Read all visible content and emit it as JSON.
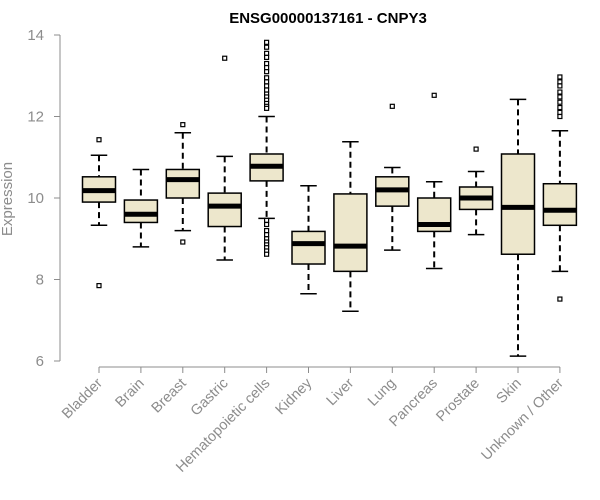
{
  "chart_data": {
    "type": "boxplot",
    "title": "ENSG00000137161 - CNPY3",
    "xlabel": "",
    "ylabel": "Expression",
    "ylim": [
      6,
      14
    ],
    "yticks": [
      6,
      8,
      10,
      12,
      14
    ],
    "box_fill": "#ede7cc",
    "line_color": "#000000",
    "axis_color": "#8c8c8c",
    "categories": [
      "Bladder",
      "Brain",
      "Breast",
      "Gastric",
      "Hematopoietic cells",
      "Kidney",
      "Liver",
      "Lung",
      "Pancreas",
      "Prostate",
      "Skin",
      "Unknown / Other"
    ],
    "boxes": [
      {
        "label": "Bladder",
        "whisker_low": 9.33,
        "q1": 9.9,
        "median": 10.18,
        "q3": 10.52,
        "whisker_high": 11.05,
        "outliers": [
          11.43,
          7.85
        ]
      },
      {
        "label": "Brain",
        "whisker_low": 8.8,
        "q1": 9.4,
        "median": 9.6,
        "q3": 9.95,
        "whisker_high": 10.7,
        "outliers": []
      },
      {
        "label": "Breast",
        "whisker_low": 9.2,
        "q1": 10.0,
        "median": 10.45,
        "q3": 10.7,
        "whisker_high": 11.6,
        "outliers": [
          11.8,
          8.92
        ]
      },
      {
        "label": "Gastric",
        "whisker_low": 8.48,
        "q1": 9.3,
        "median": 9.8,
        "q3": 10.12,
        "whisker_high": 11.02,
        "outliers": [
          13.43
        ]
      },
      {
        "label": "Hematopoietic cells",
        "whisker_low": 9.5,
        "q1": 10.42,
        "median": 10.78,
        "q3": 11.08,
        "whisker_high": 12.0,
        "outliers": [
          13.82,
          13.7,
          13.55,
          13.45,
          13.3,
          13.2,
          13.1,
          12.95,
          12.85,
          12.75,
          12.65,
          12.55,
          12.48,
          12.4,
          12.32,
          12.25,
          12.2,
          9.45,
          9.35,
          9.2,
          9.1,
          9.0,
          8.92,
          8.85,
          8.78,
          8.7,
          8.62
        ]
      },
      {
        "label": "Kidney",
        "whisker_low": 7.65,
        "q1": 8.38,
        "median": 8.88,
        "q3": 9.18,
        "whisker_high": 10.3,
        "outliers": []
      },
      {
        "label": "Liver",
        "whisker_low": 7.22,
        "q1": 8.2,
        "median": 8.82,
        "q3": 10.1,
        "whisker_high": 11.38,
        "outliers": []
      },
      {
        "label": "Lung",
        "whisker_low": 8.72,
        "q1": 9.8,
        "median": 10.2,
        "q3": 10.52,
        "whisker_high": 10.75,
        "outliers": [
          12.25
        ]
      },
      {
        "label": "Pancreas",
        "whisker_low": 8.27,
        "q1": 9.18,
        "median": 9.35,
        "q3": 10.0,
        "whisker_high": 10.4,
        "outliers": [
          12.52
        ]
      },
      {
        "label": "Prostate",
        "whisker_low": 9.1,
        "q1": 9.72,
        "median": 10.0,
        "q3": 10.27,
        "whisker_high": 10.65,
        "outliers": [
          11.2
        ]
      },
      {
        "label": "Skin",
        "whisker_low": 6.12,
        "q1": 8.62,
        "median": 9.77,
        "q3": 11.08,
        "whisker_high": 12.42,
        "outliers": []
      },
      {
        "label": "Unknown / Other",
        "whisker_low": 8.2,
        "q1": 9.33,
        "median": 9.7,
        "q3": 10.35,
        "whisker_high": 11.65,
        "outliers": [
          12.97,
          12.85,
          12.75,
          12.6,
          12.48,
          12.35,
          12.22,
          12.1,
          12.0,
          7.52
        ]
      }
    ]
  }
}
